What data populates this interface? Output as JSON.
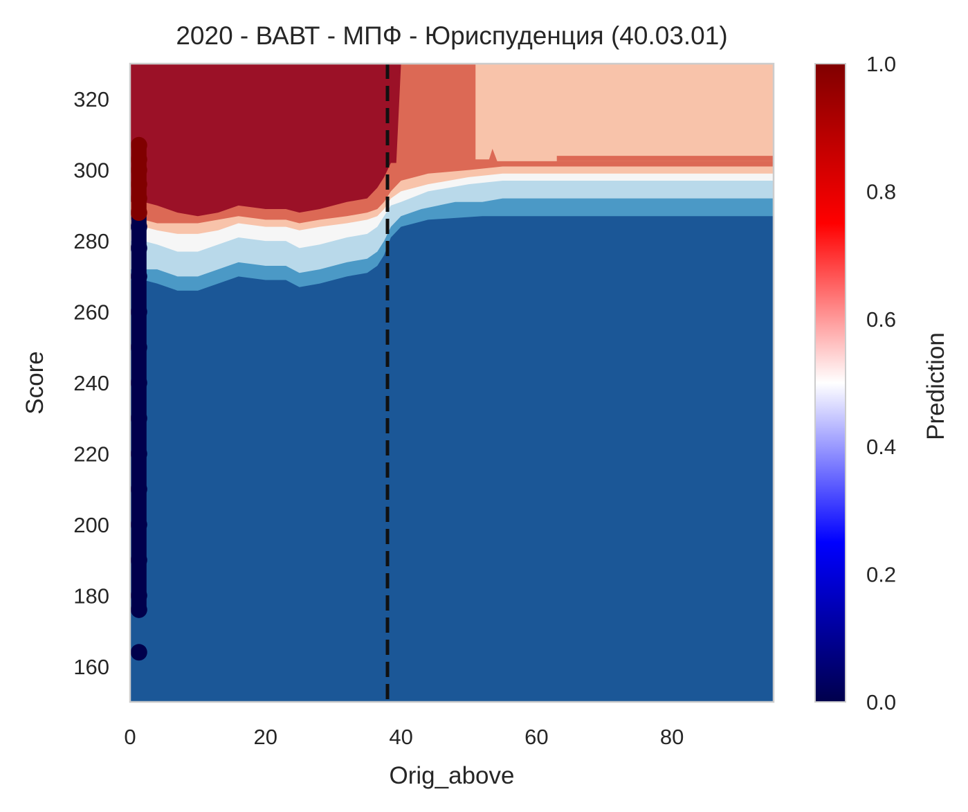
{
  "chart_data": {
    "type": "heatmap",
    "title": "2020 - ВАВТ - МПФ - Юриспуденция (40.03.01)",
    "xlabel": "Orig_above",
    "ylabel": "Score",
    "xlim": [
      0,
      95
    ],
    "ylim": [
      150,
      330
    ],
    "x_ticks": [
      "0",
      "20",
      "40",
      "60",
      "80"
    ],
    "y_ticks": [
      "160",
      "180",
      "200",
      "220",
      "240",
      "260",
      "280",
      "300",
      "320"
    ],
    "grid": false,
    "colorbar": {
      "label": "Prediction",
      "range": [
        0,
        1
      ],
      "ticks": [
        "0.0",
        "0.2",
        "0.4",
        "0.6",
        "0.8",
        "1.0"
      ],
      "colormap": "seismic"
    },
    "contour_levels": [
      {
        "level": 0.1,
        "color": "#1b5797"
      },
      {
        "level": 0.3,
        "color": "#4b99c6"
      },
      {
        "level": 0.4,
        "color": "#b9d9ea"
      },
      {
        "level": 0.5,
        "color": "#f6f6f6"
      },
      {
        "level": 0.6,
        "color": "#f8c3aa"
      },
      {
        "level": 0.7,
        "color": "#dc6955"
      },
      {
        "level": 0.9,
        "color": "#9b1127"
      }
    ],
    "reference_line": {
      "x": 38,
      "style": "dashed",
      "color": "#111111"
    },
    "scatter": {
      "x": 1,
      "points": [
        {
          "y": 164,
          "prediction": 0
        },
        {
          "y": 176,
          "prediction": 0
        },
        {
          "y": 180,
          "prediction": 0
        },
        {
          "y": 190,
          "prediction": 0
        },
        {
          "y": 200,
          "prediction": 0
        },
        {
          "y": 210,
          "prediction": 0
        },
        {
          "y": 220,
          "prediction": 0
        },
        {
          "y": 230,
          "prediction": 0
        },
        {
          "y": 240,
          "prediction": 0
        },
        {
          "y": 250,
          "prediction": 0
        },
        {
          "y": 260,
          "prediction": 0
        },
        {
          "y": 270,
          "prediction": 0
        },
        {
          "y": 278,
          "prediction": 0
        },
        {
          "y": 284,
          "prediction": 0
        },
        {
          "y": 288,
          "prediction": 1
        },
        {
          "y": 292,
          "prediction": 1
        },
        {
          "y": 296,
          "prediction": 1
        },
        {
          "y": 300,
          "prediction": 1
        },
        {
          "y": 303,
          "prediction": 1
        },
        {
          "y": 307,
          "prediction": 1
        }
      ]
    }
  }
}
